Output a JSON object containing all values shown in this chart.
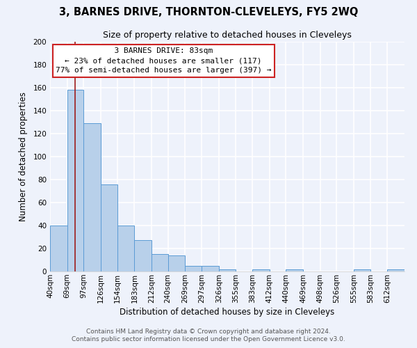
{
  "title": "3, BARNES DRIVE, THORNTON-CLEVELEYS, FY5 2WQ",
  "subtitle": "Size of property relative to detached houses in Cleveleys",
  "xlabel": "Distribution of detached houses by size in Cleveleys",
  "ylabel": "Number of detached properties",
  "bar_values": [
    40,
    158,
    129,
    76,
    40,
    27,
    15,
    14,
    5,
    5,
    2,
    0,
    2,
    0,
    2,
    0,
    0,
    0,
    2,
    0,
    2
  ],
  "bar_labels": [
    "40sqm",
    "69sqm",
    "97sqm",
    "126sqm",
    "154sqm",
    "183sqm",
    "212sqm",
    "240sqm",
    "269sqm",
    "297sqm",
    "326sqm",
    "355sqm",
    "383sqm",
    "412sqm",
    "440sqm",
    "469sqm",
    "498sqm",
    "526sqm",
    "555sqm",
    "583sqm",
    "612sqm"
  ],
  "bar_color": "#b8d0ea",
  "bar_edge_color": "#5b9bd5",
  "vline_x": 83,
  "vline_color": "#9e1c1c",
  "ylim": [
    0,
    200
  ],
  "yticks": [
    0,
    20,
    40,
    60,
    80,
    100,
    120,
    140,
    160,
    180,
    200
  ],
  "bin_edges": [
    40,
    69,
    97,
    126,
    154,
    183,
    212,
    240,
    269,
    297,
    326,
    355,
    383,
    412,
    440,
    469,
    498,
    526,
    555,
    583,
    612,
    641
  ],
  "annotation_title": "3 BARNES DRIVE: 83sqm",
  "annotation_line1": "← 23% of detached houses are smaller (117)",
  "annotation_line2": "77% of semi-detached houses are larger (397) →",
  "footer1": "Contains HM Land Registry data © Crown copyright and database right 2024.",
  "footer2": "Contains public sector information licensed under the Open Government Licence v3.0.",
  "bg_color": "#eef2fb",
  "plot_bg_color": "#eef2fb",
  "grid_color": "#ffffff",
  "title_fontsize": 10.5,
  "subtitle_fontsize": 9,
  "axis_label_fontsize": 8.5,
  "tick_fontsize": 7.5,
  "annotation_fontsize": 8,
  "footer_fontsize": 6.5
}
